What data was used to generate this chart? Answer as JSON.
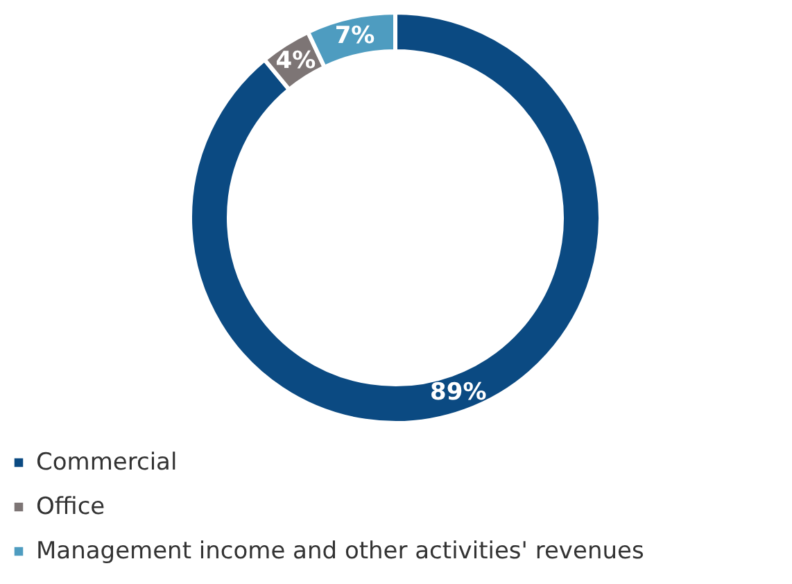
{
  "chart_data": {
    "type": "donut",
    "categories": [
      "Commercial",
      "Office",
      "Management income and other activities' revenues"
    ],
    "values": [
      89,
      4,
      7
    ],
    "colors": [
      "#0b4a82",
      "#7d7575",
      "#4e9cc0"
    ],
    "value_labels": [
      "89%",
      "4%",
      "7%"
    ],
    "legend": "bottom left"
  }
}
